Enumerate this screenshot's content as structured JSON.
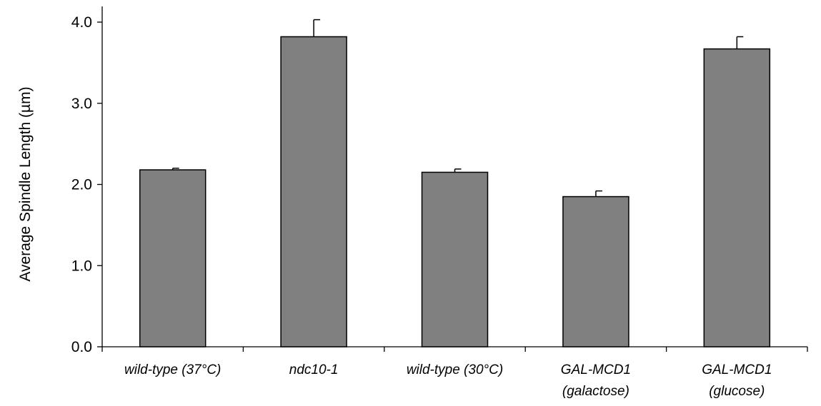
{
  "chart_data": {
    "type": "bar",
    "title": "",
    "xlabel": "",
    "ylabel": "Average Spindle Length (µm)",
    "ylim": [
      0,
      4.0
    ],
    "yticks": [
      0.0,
      1.0,
      2.0,
      3.0,
      4.0
    ],
    "ytick_labels": [
      "0.0",
      "1.0",
      "2.0",
      "3.0",
      "4.0"
    ],
    "categories": [
      [
        "wild-type (37°C)"
      ],
      [
        "ndc10-1"
      ],
      [
        "wild-type (30°C)"
      ],
      [
        "GAL-MCD1",
        "(galactose)"
      ],
      [
        "GAL-MCD1",
        "(glucose)"
      ]
    ],
    "values": [
      2.18,
      3.82,
      2.15,
      1.85,
      3.67
    ],
    "errors": [
      0.02,
      0.21,
      0.04,
      0.07,
      0.15
    ],
    "bar_color": "#808080",
    "grid": false,
    "legend": "none"
  }
}
